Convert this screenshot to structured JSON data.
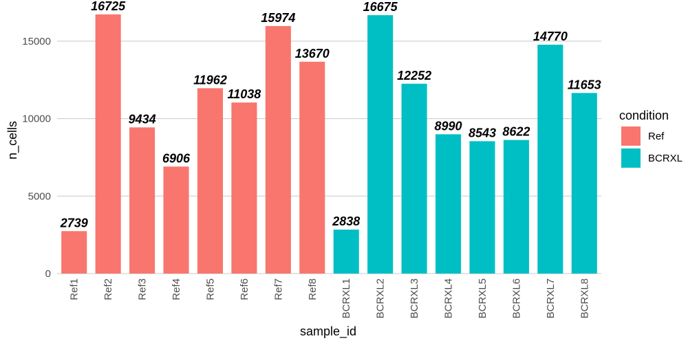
{
  "chart_data": {
    "type": "bar",
    "title": "",
    "xlabel": "sample_id",
    "ylabel": "n_cells",
    "ylim": [
      0,
      17300
    ],
    "yticks": [
      0,
      5000,
      10000,
      15000
    ],
    "grid": true,
    "legend": {
      "title": "condition",
      "placement": "right",
      "entries": [
        {
          "name": "Ref",
          "color": "#F8766D"
        },
        {
          "name": "BCRXL",
          "color": "#00BFC4"
        }
      ]
    },
    "categories": [
      "Ref1",
      "Ref2",
      "Ref3",
      "Ref4",
      "Ref5",
      "Ref6",
      "Ref7",
      "Ref8",
      "BCRXL1",
      "BCRXL2",
      "BCRXL3",
      "BCRXL4",
      "BCRXL5",
      "BCRXL6",
      "BCRXL7",
      "BCRXL8"
    ],
    "values": [
      2739,
      16725,
      9434,
      6906,
      11962,
      11038,
      15974,
      13670,
      2838,
      16675,
      12252,
      8990,
      8543,
      8622,
      14770,
      11653
    ],
    "data_labels": [
      "2739",
      "16725",
      "9434",
      "6906",
      "11962",
      "11038",
      "15974",
      "13670",
      "2838",
      "16675",
      "12252",
      "8990",
      "8543",
      "8622",
      "14770",
      "11653"
    ],
    "groups": [
      "Ref",
      "Ref",
      "Ref",
      "Ref",
      "Ref",
      "Ref",
      "Ref",
      "Ref",
      "BCRXL",
      "BCRXL",
      "BCRXL",
      "BCRXL",
      "BCRXL",
      "BCRXL",
      "BCRXL",
      "BCRXL"
    ]
  }
}
